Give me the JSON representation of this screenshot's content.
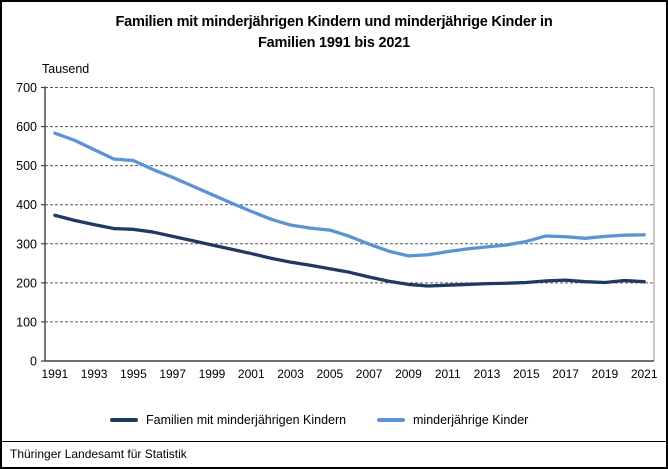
{
  "header": {
    "title_line1": "Familien mit minderjährigen Kindern und minderjährige Kinder in",
    "title_line2": "Familien 1991 bis 2021"
  },
  "chart_data": {
    "type": "line",
    "title": "Familien mit minderjährigen Kindern und minderjährige Kinder in Familien 1991 bis 2021",
    "ylabel": "Tausend",
    "xlabel": "",
    "x": [
      1991,
      1992,
      1993,
      1994,
      1995,
      1996,
      1997,
      1998,
      1999,
      2000,
      2001,
      2002,
      2003,
      2004,
      2005,
      2006,
      2007,
      2008,
      2009,
      2010,
      2011,
      2012,
      2013,
      2014,
      2015,
      2016,
      2017,
      2018,
      2019,
      2020,
      2021
    ],
    "series": [
      {
        "name": "Familien mit minderjährigen Kindern",
        "color": "#1F3A60",
        "values": [
          373,
          360,
          349,
          339,
          337,
          330,
          319,
          308,
          297,
          286,
          275,
          263,
          253,
          245,
          236,
          227,
          215,
          204,
          196,
          192,
          194,
          196,
          198,
          199,
          201,
          205,
          207,
          203,
          201,
          206,
          203
        ]
      },
      {
        "name": "minderjährige Kinder",
        "color": "#5B93D5",
        "values": [
          583,
          565,
          541,
          517,
          513,
          490,
          470,
          448,
          426,
          404,
          383,
          363,
          348,
          340,
          335,
          319,
          299,
          281,
          269,
          272,
          280,
          287,
          292,
          297,
          306,
          320,
          318,
          314,
          319,
          322,
          323
        ]
      }
    ],
    "ylim": [
      0,
      700
    ],
    "ytick_step": 100,
    "xtick_step": 2,
    "grid": "horizontal-dashed",
    "legend_position": "bottom",
    "axis_color": "#404040",
    "grid_color": "#595959",
    "plot_border_color": "#A6A6A6"
  },
  "footer": {
    "source": "Thüringer Landesamt für Statistik"
  }
}
